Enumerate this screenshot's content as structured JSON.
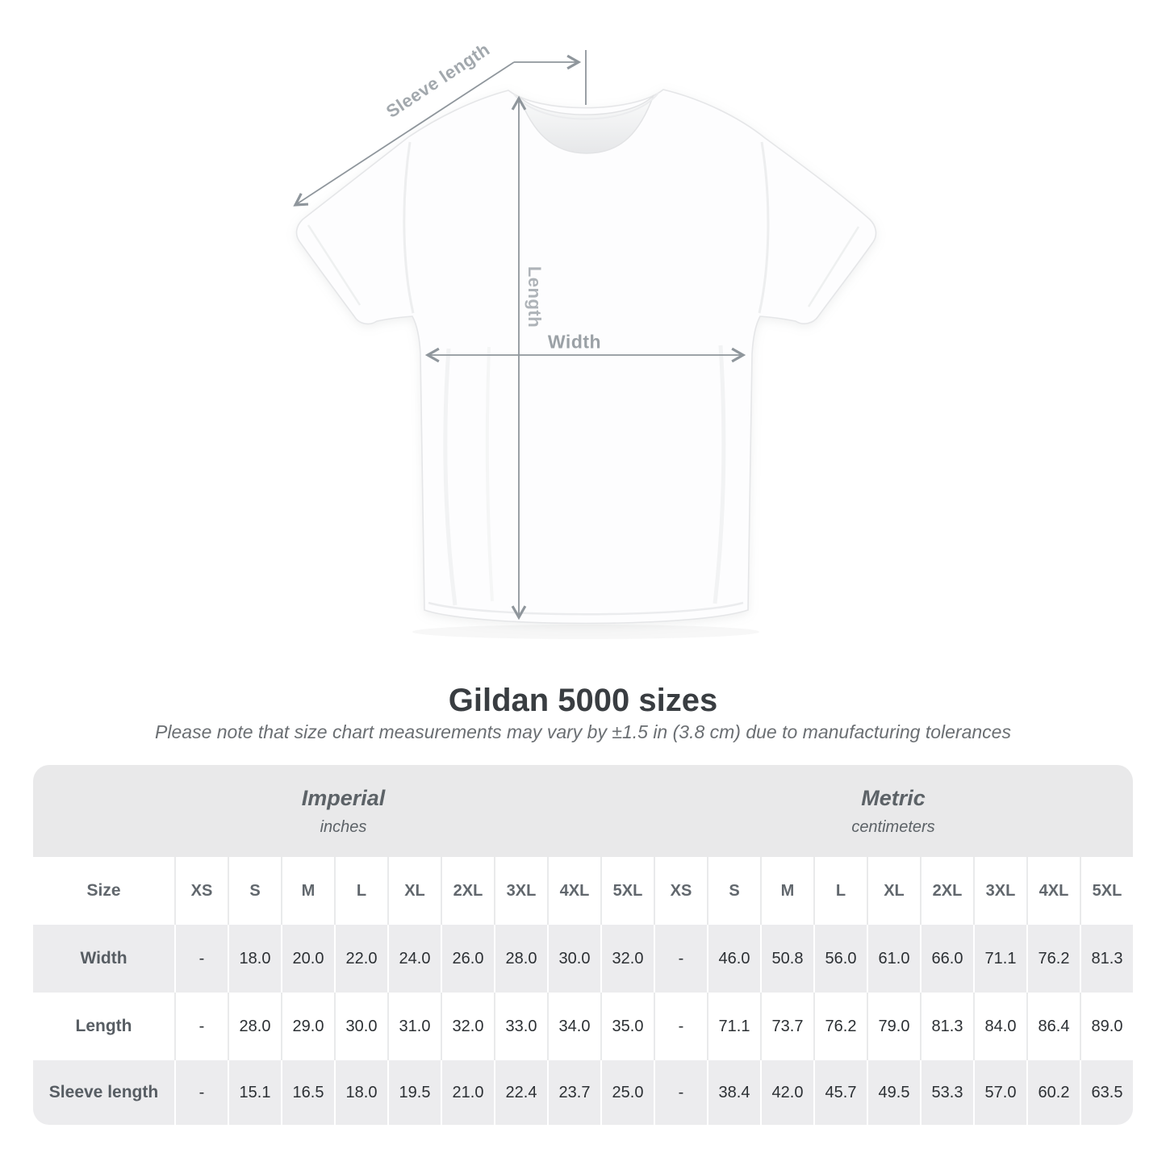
{
  "title": "Gildan 5000 sizes",
  "subtitle": "Please note that size chart measurements may vary by ±1.5 in (3.8 cm) due to manufacturing tolerances",
  "diagram": {
    "sleeve_label": "Sleeve length",
    "length_label": "Length",
    "width_label": "Width"
  },
  "chart_data": {
    "type": "table",
    "title": "Gildan 5000 sizes",
    "note": "Please note that size chart measurements may vary by ±1.5 in (3.8 cm) due to manufacturing tolerances",
    "corner_label": "Size",
    "row_labels": [
      "Width",
      "Length",
      "Sleeve length"
    ],
    "sections": [
      {
        "name": "Imperial",
        "unit": "inches",
        "sizes": [
          "XS",
          "S",
          "M",
          "L",
          "XL",
          "2XL",
          "3XL",
          "4XL",
          "5XL"
        ],
        "rows": [
          [
            "-",
            "18.0",
            "20.0",
            "22.0",
            "24.0",
            "26.0",
            "28.0",
            "30.0",
            "32.0"
          ],
          [
            "-",
            "28.0",
            "29.0",
            "30.0",
            "31.0",
            "32.0",
            "33.0",
            "34.0",
            "35.0"
          ],
          [
            "-",
            "15.1",
            "16.5",
            "18.0",
            "19.5",
            "21.0",
            "22.4",
            "23.7",
            "25.0"
          ]
        ]
      },
      {
        "name": "Metric",
        "unit": "centimeters",
        "sizes": [
          "XS",
          "S",
          "M",
          "L",
          "XL",
          "2XL",
          "3XL",
          "4XL",
          "5XL"
        ],
        "rows": [
          [
            "-",
            "46.0",
            "50.8",
            "56.0",
            "61.0",
            "66.0",
            "71.1",
            "76.2",
            "81.3"
          ],
          [
            "-",
            "71.1",
            "73.7",
            "76.2",
            "79.0",
            "81.3",
            "84.0",
            "86.4",
            "89.0"
          ],
          [
            "-",
            "38.4",
            "42.0",
            "45.7",
            "49.5",
            "53.3",
            "57.0",
            "60.2",
            "63.5"
          ]
        ]
      }
    ]
  },
  "colors": {
    "band_gray": "#e9e9ea",
    "row_gray": "#ececee",
    "arrow_gray": "#8f969c",
    "label_gray": "#a2a8ad",
    "header_text": "#61676d",
    "value_text": "#2c3034",
    "title_text": "#393d41"
  }
}
